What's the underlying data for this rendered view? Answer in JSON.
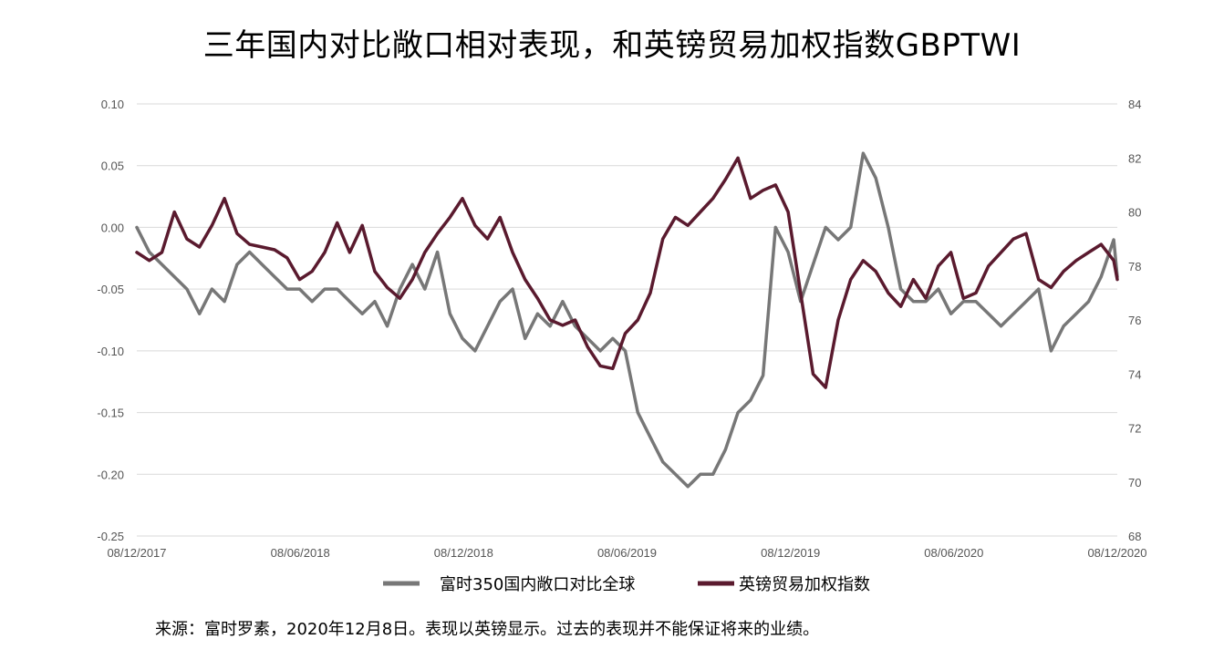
{
  "title": "三年国内对比敞口相对表现，和英镑贸易加权指数GBPTWI",
  "source": "来源：富时罗素，2020年12月8日。表现以英镑显示。过去的表现并不能保证将来的业绩。",
  "colors": {
    "series1": "#777777",
    "series2": "#5a1a2e",
    "grid": "#d9d9d9"
  },
  "chart_data": {
    "type": "line",
    "title": "三年国内对比敞口相对表现，和英镑贸易加权指数GBPTWI",
    "x_ticks": [
      "08/12/2017",
      "08/06/2018",
      "08/12/2018",
      "08/06/2019",
      "08/12/2019",
      "08/06/2020",
      "08/12/2020"
    ],
    "y_left": {
      "ticks": [
        "0.10",
        "0.05",
        "0.00",
        "-0.05",
        "-0.10",
        "-0.15",
        "-0.20",
        "-0.25"
      ],
      "min": -0.25,
      "max": 0.1
    },
    "y_right": {
      "ticks": [
        "84",
        "82",
        "80",
        "78",
        "76",
        "74",
        "72",
        "70",
        "68"
      ],
      "min": 68,
      "max": 84
    },
    "grid": true,
    "legend_position": "bottom",
    "series": [
      {
        "name": "富时350国内敞口对比全球",
        "axis": "left",
        "x": [
          "2017-12-08",
          "2017-12-22",
          "2018-01-05",
          "2018-01-19",
          "2018-02-02",
          "2018-02-16",
          "2018-03-02",
          "2018-03-16",
          "2018-03-30",
          "2018-04-13",
          "2018-04-27",
          "2018-05-11",
          "2018-05-25",
          "2018-06-08",
          "2018-06-22",
          "2018-07-06",
          "2018-07-20",
          "2018-08-03",
          "2018-08-17",
          "2018-08-31",
          "2018-09-14",
          "2018-09-28",
          "2018-10-12",
          "2018-10-26",
          "2018-11-09",
          "2018-11-23",
          "2018-12-07",
          "2018-12-21",
          "2019-01-04",
          "2019-01-18",
          "2019-02-01",
          "2019-02-15",
          "2019-03-01",
          "2019-03-15",
          "2019-03-29",
          "2019-04-12",
          "2019-04-26",
          "2019-05-10",
          "2019-05-24",
          "2019-06-07",
          "2019-06-21",
          "2019-07-05",
          "2019-07-19",
          "2019-08-02",
          "2019-08-16",
          "2019-08-30",
          "2019-09-13",
          "2019-09-27",
          "2019-10-11",
          "2019-10-25",
          "2019-11-08",
          "2019-11-22",
          "2019-12-06",
          "2019-12-20",
          "2020-01-03",
          "2020-01-17",
          "2020-01-31",
          "2020-02-14",
          "2020-02-28",
          "2020-03-13",
          "2020-03-27",
          "2020-04-10",
          "2020-04-24",
          "2020-05-08",
          "2020-05-22",
          "2020-06-05",
          "2020-06-19",
          "2020-07-03",
          "2020-07-17",
          "2020-07-31",
          "2020-08-14",
          "2020-08-28",
          "2020-09-11",
          "2020-09-25",
          "2020-10-09",
          "2020-10-23",
          "2020-11-06",
          "2020-11-20",
          "2020-12-04",
          "2020-12-08"
        ],
        "y": [
          0.0,
          -0.02,
          -0.03,
          -0.04,
          -0.05,
          -0.07,
          -0.05,
          -0.06,
          -0.03,
          -0.02,
          -0.03,
          -0.04,
          -0.05,
          -0.05,
          -0.06,
          -0.05,
          -0.05,
          -0.06,
          -0.07,
          -0.06,
          -0.08,
          -0.05,
          -0.03,
          -0.05,
          -0.02,
          -0.07,
          -0.09,
          -0.1,
          -0.08,
          -0.06,
          -0.05,
          -0.09,
          -0.07,
          -0.08,
          -0.06,
          -0.08,
          -0.09,
          -0.1,
          -0.09,
          -0.1,
          -0.15,
          -0.17,
          -0.19,
          -0.2,
          -0.21,
          -0.2,
          -0.2,
          -0.18,
          -0.15,
          -0.14,
          -0.12,
          0.0,
          -0.02,
          -0.06,
          -0.03,
          0.0,
          -0.01,
          0.0,
          0.06,
          0.04,
          0.0,
          -0.05,
          -0.06,
          -0.06,
          -0.05,
          -0.07,
          -0.06,
          -0.06,
          -0.07,
          -0.08,
          -0.07,
          -0.06,
          -0.05,
          -0.1,
          -0.08,
          -0.07,
          -0.06,
          -0.04,
          -0.01,
          -0.04
        ]
      },
      {
        "name": "英镑贸易加权指数",
        "axis": "right",
        "x": [
          "2017-12-08",
          "2017-12-22",
          "2018-01-05",
          "2018-01-19",
          "2018-02-02",
          "2018-02-16",
          "2018-03-02",
          "2018-03-16",
          "2018-03-30",
          "2018-04-13",
          "2018-04-27",
          "2018-05-11",
          "2018-05-25",
          "2018-06-08",
          "2018-06-22",
          "2018-07-06",
          "2018-07-20",
          "2018-08-03",
          "2018-08-17",
          "2018-08-31",
          "2018-09-14",
          "2018-09-28",
          "2018-10-12",
          "2018-10-26",
          "2018-11-09",
          "2018-11-23",
          "2018-12-07",
          "2018-12-21",
          "2019-01-04",
          "2019-01-18",
          "2019-02-01",
          "2019-02-15",
          "2019-03-01",
          "2019-03-15",
          "2019-03-29",
          "2019-04-12",
          "2019-04-26",
          "2019-05-10",
          "2019-05-24",
          "2019-06-07",
          "2019-06-21",
          "2019-07-05",
          "2019-07-19",
          "2019-08-02",
          "2019-08-16",
          "2019-08-30",
          "2019-09-13",
          "2019-09-27",
          "2019-10-11",
          "2019-10-25",
          "2019-11-08",
          "2019-11-22",
          "2019-12-06",
          "2019-12-20",
          "2020-01-03",
          "2020-01-17",
          "2020-01-31",
          "2020-02-14",
          "2020-02-28",
          "2020-03-13",
          "2020-03-27",
          "2020-04-10",
          "2020-04-24",
          "2020-05-08",
          "2020-05-22",
          "2020-06-05",
          "2020-06-19",
          "2020-07-03",
          "2020-07-17",
          "2020-07-31",
          "2020-08-14",
          "2020-08-28",
          "2020-09-11",
          "2020-09-25",
          "2020-10-09",
          "2020-10-23",
          "2020-11-06",
          "2020-11-20",
          "2020-12-04",
          "2020-12-08"
        ],
        "y": [
          78.5,
          78.2,
          78.5,
          80.0,
          79.0,
          78.7,
          79.5,
          80.5,
          79.2,
          78.8,
          78.7,
          78.6,
          78.3,
          77.5,
          77.8,
          78.5,
          79.6,
          78.5,
          79.5,
          77.8,
          77.2,
          76.8,
          77.5,
          78.5,
          79.2,
          79.8,
          80.5,
          79.5,
          79.0,
          79.8,
          78.5,
          77.5,
          76.8,
          76.0,
          75.8,
          76.0,
          75.0,
          74.3,
          74.2,
          75.5,
          76.0,
          77.0,
          79.0,
          79.8,
          79.5,
          80.0,
          80.5,
          81.2,
          82.0,
          80.5,
          80.8,
          81.0,
          80.0,
          77.0,
          74.0,
          73.5,
          76.0,
          77.5,
          78.2,
          77.8,
          77.0,
          76.5,
          77.5,
          76.8,
          78.0,
          78.5,
          76.8,
          77.0,
          78.0,
          78.5,
          79.0,
          79.2,
          77.5,
          77.2,
          77.8,
          78.2,
          78.5,
          78.8,
          78.2,
          77.5
        ]
      }
    ]
  }
}
